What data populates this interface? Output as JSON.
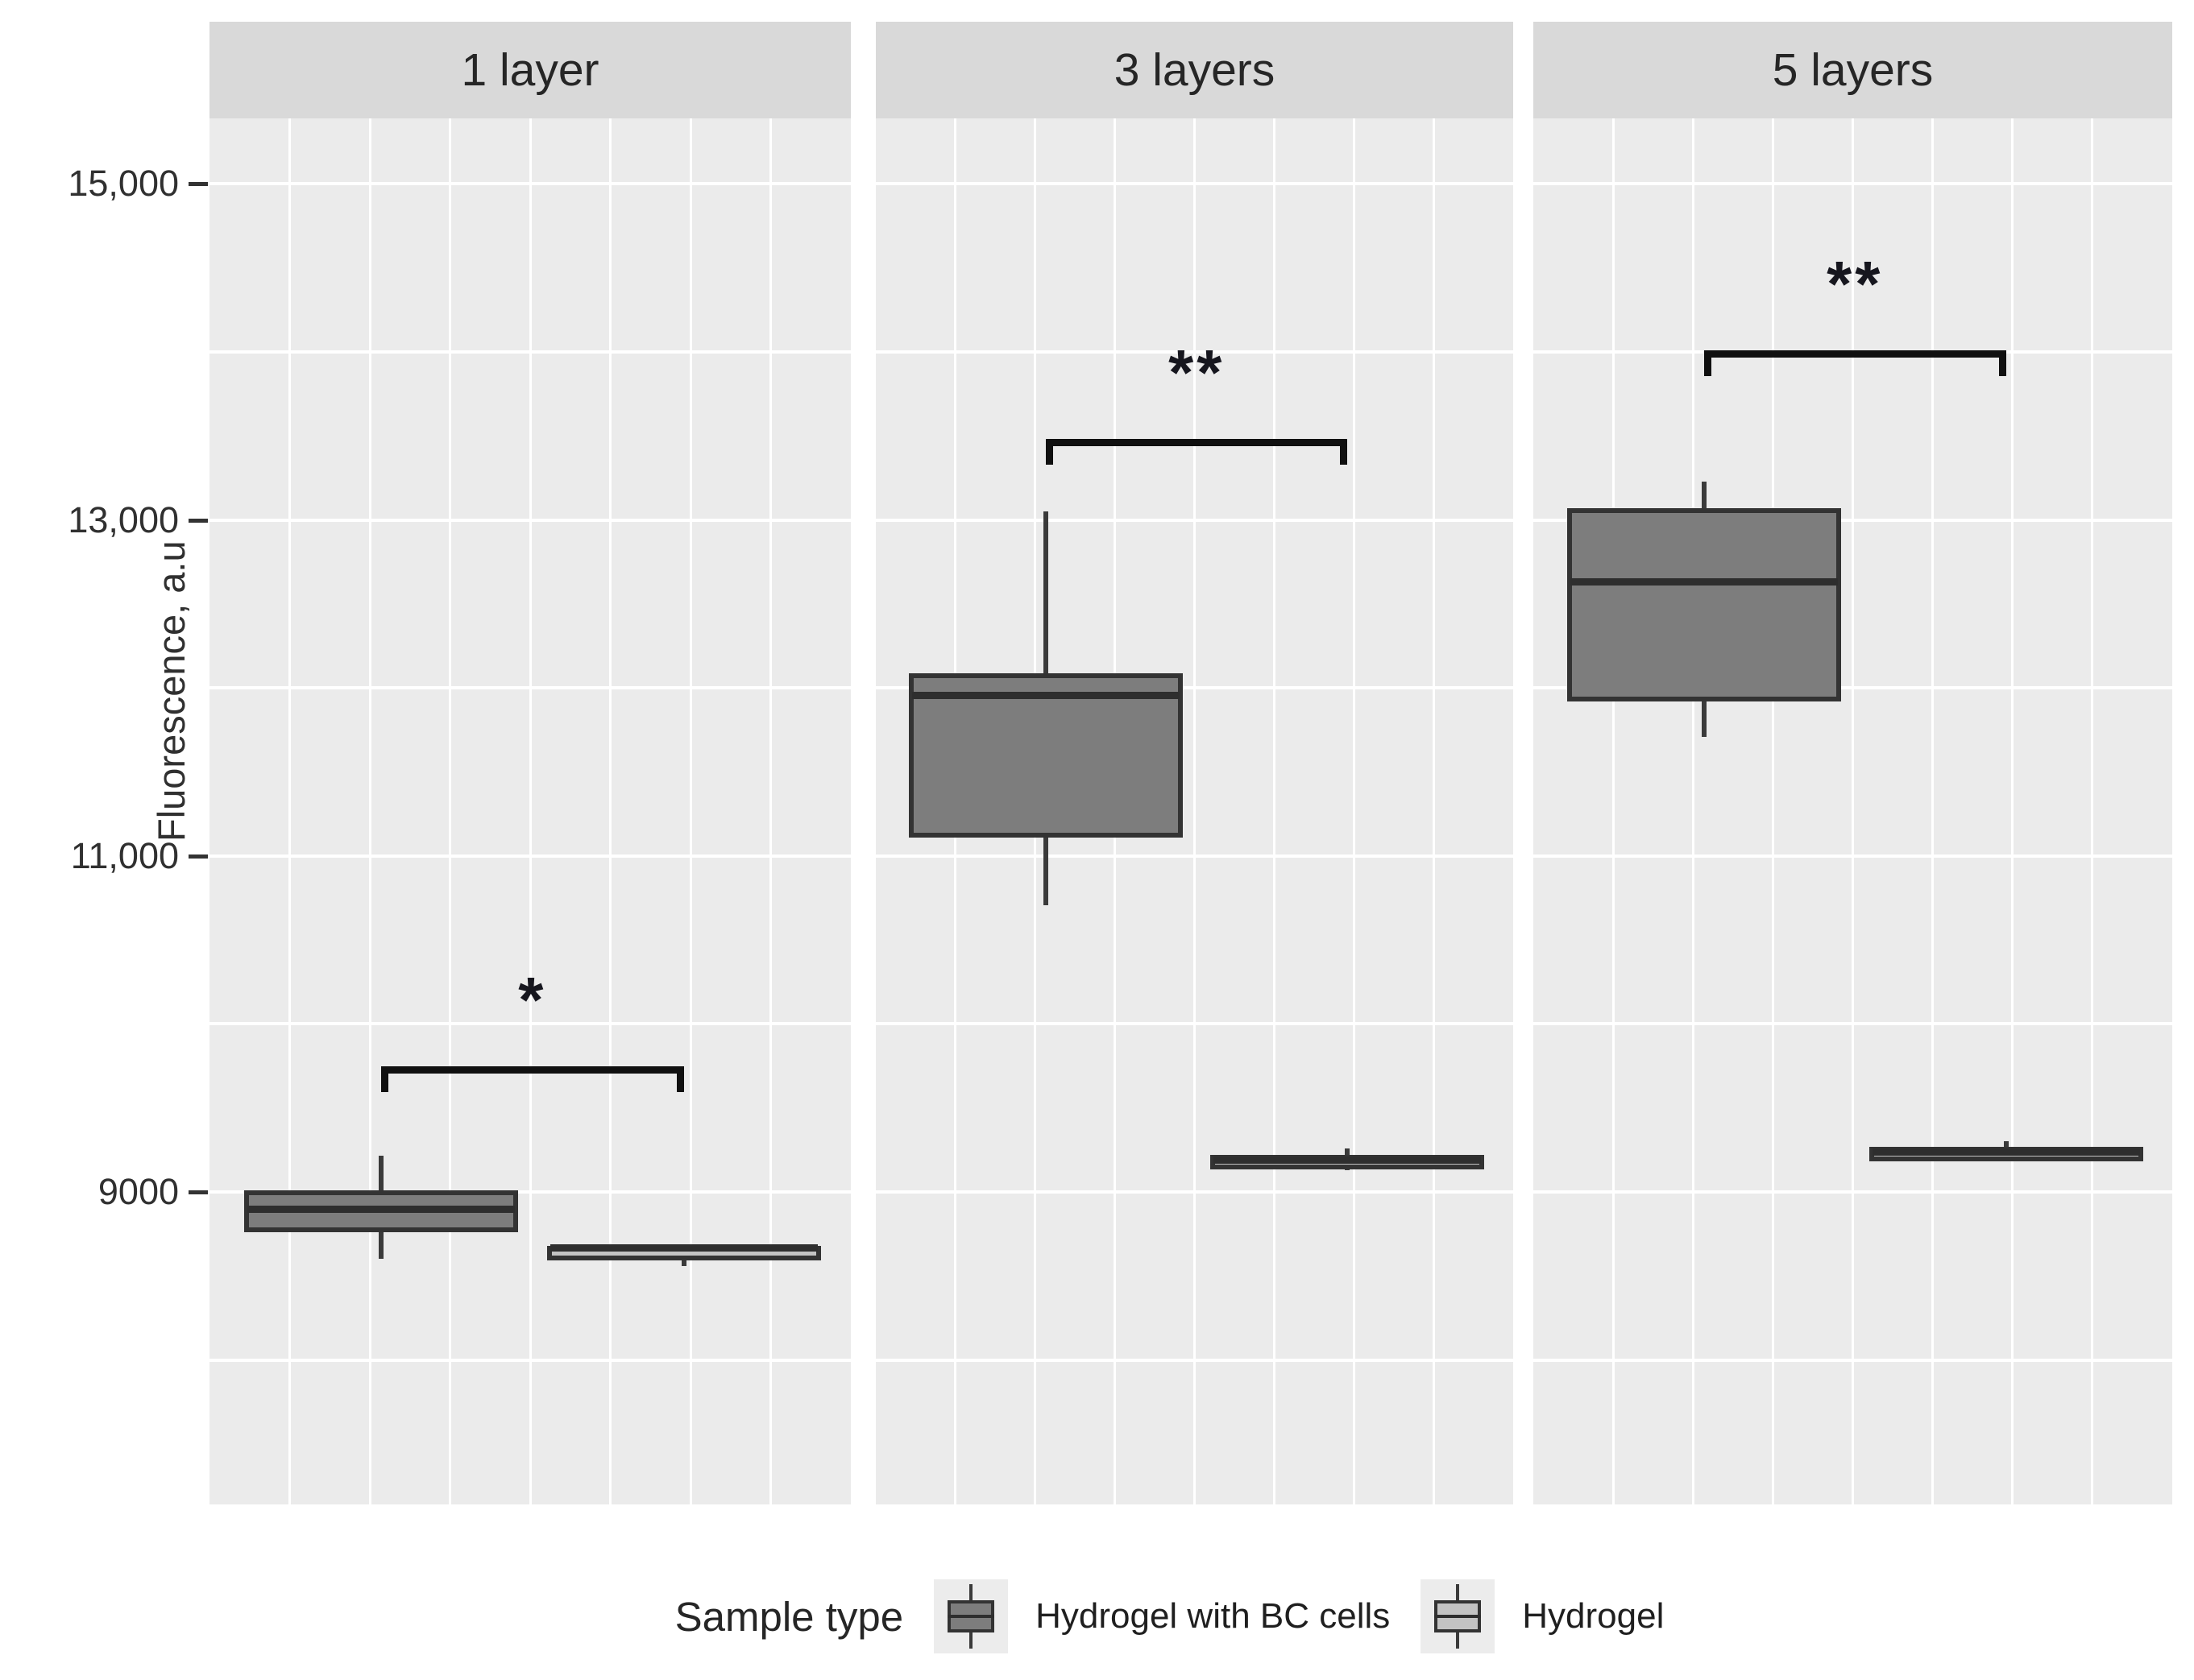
{
  "chart_data": {
    "type": "boxplot",
    "title": "",
    "ylabel": "Fluorescence, a.u",
    "xlabel": "",
    "ylim": [
      7140,
      15390
    ],
    "yticks": [
      {
        "value": 15000,
        "label": "15,000"
      },
      {
        "value": 13000,
        "label": "13,000"
      },
      {
        "value": 11000,
        "label": "11,000"
      },
      {
        "value": 9000,
        "label": "9000"
      }
    ],
    "grid": {
      "horizontal_unit_spacing": 1000,
      "vertical_lines_per_panel": 7,
      "gridline_color": "#ffffff",
      "panel_background": "#ebebeb"
    },
    "facets": [
      {
        "title": "1 layer",
        "boxes": [
          {
            "group": "Hydrogel with BC cells",
            "min": 8600,
            "q1": 8760,
            "median": 8900,
            "q3": 9010,
            "max": 9215
          },
          {
            "group": "Hydrogel",
            "min": 8560,
            "q1": 8600,
            "median": 8670,
            "q3": 8680,
            "max": 8680
          }
        ],
        "significance": {
          "label": "*",
          "bar_value": 9750
        }
      },
      {
        "title": "3 layers",
        "boxes": [
          {
            "group": "Hydrogel with BC cells",
            "min": 10705,
            "q1": 11110,
            "median": 11960,
            "q3": 12085,
            "max": 13050
          },
          {
            "group": "Hydrogel",
            "min": 9130,
            "q1": 9160,
            "median": 9190,
            "q3": 9220,
            "max": 9260
          }
        ],
        "significance": {
          "label": "**",
          "bar_value": 13480
        }
      },
      {
        "title": "5 layers",
        "boxes": [
          {
            "group": "Hydrogel with BC cells",
            "min": 11710,
            "q1": 11920,
            "median": 12635,
            "q3": 13070,
            "max": 13230
          },
          {
            "group": "Hydrogel",
            "min": 9180,
            "q1": 9210,
            "median": 9240,
            "q3": 9270,
            "max": 9300
          }
        ],
        "significance": {
          "label": "**",
          "bar_value": 14010
        }
      }
    ],
    "legend": {
      "title": "Sample type",
      "items": [
        {
          "label": "Hydrogel with BC cells",
          "color": "#7d7d7d"
        },
        {
          "label": "Hydrogel",
          "color": "#c3c3c3"
        }
      ]
    },
    "colors": {
      "dark_fill": "#7d7d7d",
      "light_fill": "#c3c3c3",
      "box_stroke": "#333333",
      "median": "#2e2e2e",
      "strip_background": "#d9d9d9",
      "panel_background": "#ebebeb",
      "gridline": "#ffffff",
      "bracket": "#101010",
      "text": "#303030"
    }
  }
}
